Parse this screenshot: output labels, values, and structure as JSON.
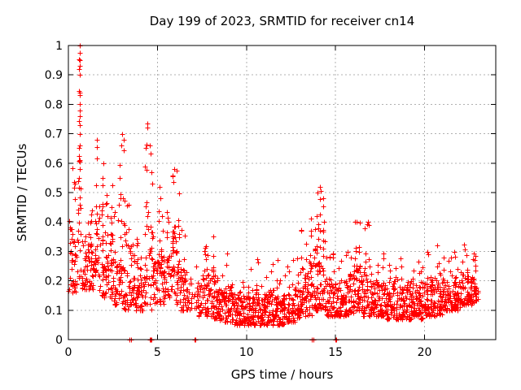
{
  "title": "Day 199 of 2023, SRMTID for receiver cn14",
  "receiver": "cn14",
  "day_of_year": "199",
  "year": "2023",
  "colors": {
    "marker": "#ff0000",
    "axis": "#000000",
    "grid": "#b0b0b0",
    "background": "#ffffff"
  },
  "chart_data": {
    "type": "scatter",
    "title": "Day 199 of 2023, SRMTID for receiver cn14",
    "xlabel": "GPS time / hours",
    "ylabel": "SRMTID / TECUs",
    "xlim": [
      0,
      24
    ],
    "ylim": [
      0,
      1
    ],
    "grid": true,
    "marker": "plus",
    "marker_color": "#ff0000",
    "xticks": {
      "values": [
        0,
        5,
        10,
        15,
        20
      ],
      "labels": [
        "0",
        "5",
        "10",
        "15",
        "20"
      ]
    },
    "yticks": {
      "values": [
        0,
        0.1,
        0.2,
        0.3,
        0.4,
        0.5,
        0.6,
        0.7,
        0.8,
        0.9,
        1
      ],
      "labels": [
        "0",
        "0.1",
        "0.2",
        "0.3",
        "0.4",
        "0.5",
        "0.6",
        "0.7",
        "0.8",
        "0.9",
        "1"
      ]
    },
    "band_width_hours": 0.25,
    "bands_format": [
      "t_start_hours",
      "y_min",
      "y_max",
      "n_points",
      "spike_fraction"
    ],
    "bands": [
      [
        0.0,
        0.16,
        0.62,
        26,
        0.3
      ],
      [
        0.25,
        0.16,
        0.55,
        24,
        0.2
      ],
      [
        0.5,
        0.2,
        1.0,
        30,
        0.5
      ],
      [
        0.75,
        0.17,
        0.5,
        26,
        0.2
      ],
      [
        1.0,
        0.17,
        0.46,
        24,
        0.15
      ],
      [
        1.25,
        0.17,
        0.5,
        24,
        0.15
      ],
      [
        1.5,
        0.22,
        0.68,
        28,
        0.4
      ],
      [
        1.75,
        0.15,
        0.63,
        30,
        0.35
      ],
      [
        2.0,
        0.14,
        0.56,
        28,
        0.25
      ],
      [
        2.25,
        0.14,
        0.55,
        26,
        0.25
      ],
      [
        2.5,
        0.12,
        0.46,
        24,
        0.2
      ],
      [
        2.75,
        0.12,
        0.66,
        28,
        0.3
      ],
      [
        3.0,
        0.1,
        0.7,
        28,
        0.35
      ],
      [
        3.25,
        0.1,
        0.5,
        24,
        0.2
      ],
      [
        3.5,
        0.12,
        0.5,
        26,
        0.25
      ],
      [
        3.75,
        0.1,
        0.46,
        24,
        0.2
      ],
      [
        4.0,
        0.1,
        0.4,
        22,
        0.15
      ],
      [
        4.25,
        0.12,
        0.735,
        26,
        0.4
      ],
      [
        4.5,
        0.1,
        0.66,
        24,
        0.3
      ],
      [
        4.75,
        0.12,
        0.4,
        24,
        0.15
      ],
      [
        5.0,
        0.12,
        0.52,
        26,
        0.25
      ],
      [
        5.25,
        0.12,
        0.43,
        24,
        0.2
      ],
      [
        5.5,
        0.14,
        0.46,
        26,
        0.2
      ],
      [
        5.75,
        0.15,
        0.58,
        28,
        0.3
      ],
      [
        6.0,
        0.12,
        0.58,
        28,
        0.3
      ],
      [
        6.25,
        0.1,
        0.42,
        24,
        0.2
      ],
      [
        6.5,
        0.1,
        0.36,
        22,
        0.15
      ],
      [
        6.75,
        0.1,
        0.3,
        10,
        0.1
      ],
      [
        7.0,
        0.1,
        0.28,
        8,
        0.1
      ],
      [
        7.25,
        0.08,
        0.3,
        20,
        0.15
      ],
      [
        7.5,
        0.08,
        0.33,
        26,
        0.2
      ],
      [
        7.75,
        0.08,
        0.33,
        28,
        0.2
      ],
      [
        8.0,
        0.07,
        0.38,
        30,
        0.25
      ],
      [
        8.25,
        0.07,
        0.3,
        28,
        0.15
      ],
      [
        8.5,
        0.06,
        0.28,
        26,
        0.15
      ],
      [
        8.75,
        0.06,
        0.33,
        26,
        0.2
      ],
      [
        9.0,
        0.06,
        0.3,
        26,
        0.15
      ],
      [
        9.25,
        0.05,
        0.25,
        24,
        0.1
      ],
      [
        9.5,
        0.05,
        0.22,
        24,
        0.1
      ],
      [
        9.75,
        0.05,
        0.22,
        24,
        0.1
      ],
      [
        10.0,
        0.05,
        0.25,
        26,
        0.1
      ],
      [
        10.25,
        0.05,
        0.22,
        26,
        0.1
      ],
      [
        10.5,
        0.05,
        0.28,
        26,
        0.15
      ],
      [
        10.75,
        0.05,
        0.22,
        26,
        0.1
      ],
      [
        11.0,
        0.05,
        0.25,
        26,
        0.1
      ],
      [
        11.25,
        0.05,
        0.28,
        26,
        0.15
      ],
      [
        11.5,
        0.06,
        0.3,
        28,
        0.15
      ],
      [
        11.75,
        0.05,
        0.22,
        26,
        0.1
      ],
      [
        12.0,
        0.05,
        0.25,
        26,
        0.1
      ],
      [
        12.25,
        0.06,
        0.28,
        26,
        0.15
      ],
      [
        12.5,
        0.06,
        0.28,
        26,
        0.15
      ],
      [
        12.75,
        0.07,
        0.3,
        26,
        0.15
      ],
      [
        13.0,
        0.08,
        0.38,
        28,
        0.25
      ],
      [
        13.25,
        0.08,
        0.35,
        28,
        0.2
      ],
      [
        13.5,
        0.08,
        0.42,
        28,
        0.25
      ],
      [
        13.75,
        0.1,
        0.5,
        28,
        0.3
      ],
      [
        14.0,
        0.1,
        0.52,
        30,
        0.35
      ],
      [
        14.25,
        0.1,
        0.48,
        28,
        0.3
      ],
      [
        14.5,
        0.08,
        0.33,
        26,
        0.15
      ],
      [
        14.75,
        0.08,
        0.32,
        26,
        0.15
      ],
      [
        15.0,
        0.08,
        0.33,
        28,
        0.2
      ],
      [
        15.25,
        0.08,
        0.32,
        26,
        0.15
      ],
      [
        15.5,
        0.08,
        0.32,
        26,
        0.15
      ],
      [
        15.75,
        0.08,
        0.35,
        26,
        0.2
      ],
      [
        16.0,
        0.1,
        0.4,
        28,
        0.25
      ],
      [
        16.25,
        0.1,
        0.4,
        28,
        0.25
      ],
      [
        16.5,
        0.08,
        0.38,
        26,
        0.2
      ],
      [
        16.75,
        0.08,
        0.4,
        26,
        0.25
      ],
      [
        17.0,
        0.08,
        0.33,
        26,
        0.15
      ],
      [
        17.25,
        0.08,
        0.33,
        26,
        0.15
      ],
      [
        17.5,
        0.08,
        0.3,
        26,
        0.15
      ],
      [
        17.75,
        0.07,
        0.28,
        26,
        0.1
      ],
      [
        18.0,
        0.07,
        0.3,
        26,
        0.15
      ],
      [
        18.25,
        0.07,
        0.33,
        26,
        0.15
      ],
      [
        18.5,
        0.07,
        0.28,
        26,
        0.1
      ],
      [
        18.75,
        0.07,
        0.28,
        26,
        0.1
      ],
      [
        19.0,
        0.07,
        0.3,
        26,
        0.15
      ],
      [
        19.25,
        0.08,
        0.3,
        26,
        0.15
      ],
      [
        19.5,
        0.08,
        0.28,
        28,
        0.1
      ],
      [
        19.75,
        0.07,
        0.28,
        28,
        0.1
      ],
      [
        20.0,
        0.08,
        0.3,
        28,
        0.15
      ],
      [
        20.25,
        0.08,
        0.33,
        28,
        0.15
      ],
      [
        20.5,
        0.08,
        0.33,
        26,
        0.15
      ],
      [
        20.75,
        0.08,
        0.28,
        26,
        0.1
      ],
      [
        21.0,
        0.1,
        0.3,
        26,
        0.15
      ],
      [
        21.25,
        0.1,
        0.3,
        26,
        0.15
      ],
      [
        21.5,
        0.1,
        0.33,
        26,
        0.15
      ],
      [
        21.75,
        0.1,
        0.28,
        26,
        0.1
      ],
      [
        22.0,
        0.12,
        0.33,
        26,
        0.15
      ],
      [
        22.25,
        0.12,
        0.33,
        26,
        0.15
      ],
      [
        22.5,
        0.12,
        0.3,
        26,
        0.15
      ],
      [
        22.75,
        0.13,
        0.3,
        26,
        0.2
      ]
    ],
    "peak_points": [
      [
        0.63,
        1.0
      ],
      [
        0.64,
        0.975
      ],
      [
        0.66,
        0.95
      ],
      [
        0.63,
        0.93
      ],
      [
        0.65,
        0.9
      ],
      [
        0.64,
        0.84
      ],
      [
        0.66,
        0.8
      ],
      [
        0.63,
        0.78
      ],
      [
        0.65,
        0.76
      ],
      [
        0.64,
        0.73
      ],
      [
        0.66,
        0.7
      ],
      [
        0.65,
        0.66
      ],
      [
        1.58,
        0.68
      ],
      [
        1.62,
        0.655
      ],
      [
        3.0,
        0.7
      ],
      [
        2.97,
        0.66
      ],
      [
        4.45,
        0.735
      ],
      [
        4.42,
        0.72
      ],
      [
        4.55,
        0.66
      ],
      [
        5.12,
        0.52
      ],
      [
        5.95,
        0.58
      ],
      [
        6.08,
        0.575
      ],
      [
        13.98,
        0.5
      ],
      [
        14.12,
        0.52
      ],
      [
        14.15,
        0.505
      ],
      [
        14.3,
        0.48
      ],
      [
        16.2,
        0.4
      ],
      [
        16.8,
        0.4
      ]
    ],
    "zero_value_hours": [
      3.45,
      3.52,
      4.58,
      4.61,
      4.64,
      7.08,
      7.11,
      7.14,
      13.65,
      13.75,
      14.99,
      15.02,
      15.05
    ]
  }
}
